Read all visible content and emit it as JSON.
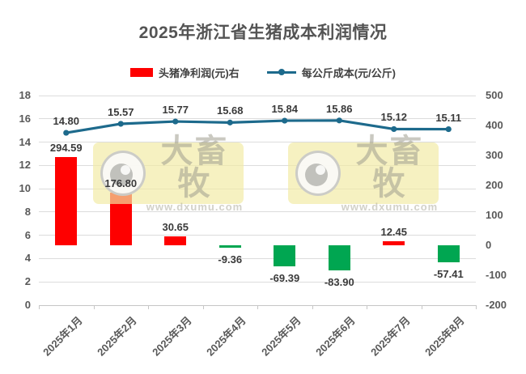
{
  "title": "2025年浙江省生猪成本利润情况",
  "watermark": {
    "brand": "大畜牧",
    "site": "www.dxumu.com"
  },
  "chart_data": {
    "type": "combo",
    "title": "2025年浙江省生猪成本利润情况",
    "categories": [
      "2025年1月",
      "2025年2月",
      "2025年3月",
      "2025年4月",
      "2025年5月",
      "2025年6月",
      "2025年7月",
      "2025年8月"
    ],
    "grid": true,
    "legend_position": "top",
    "left_axis": {
      "min": 0,
      "max": 18,
      "ticks": [
        "18",
        "16",
        "14",
        "12",
        "10",
        "8",
        "6",
        "4",
        "2",
        "0"
      ]
    },
    "right_axis": {
      "min": -200,
      "max": 500,
      "ticks": [
        "500",
        "400",
        "300",
        "200",
        "100",
        "0",
        "-100",
        "-200"
      ]
    },
    "series": [
      {
        "name": "头猪净利润(元)右",
        "type": "bar",
        "axis": "right",
        "values": [
          294.59,
          176.8,
          30.65,
          -9.36,
          -69.39,
          -83.9,
          12.45,
          -57.41
        ],
        "labels": [
          "294.59",
          "176.80",
          "30.65",
          "-9.36",
          "-69.39",
          "-83.90",
          "12.45",
          "-57.41"
        ],
        "positive_color": "#fe0000",
        "negative_color": "#00a651"
      },
      {
        "name": "每公斤成本(元/公斤)",
        "type": "line",
        "axis": "left",
        "values": [
          14.8,
          15.57,
          15.77,
          15.68,
          15.84,
          15.86,
          15.12,
          15.11
        ],
        "labels": [
          "14.80",
          "15.57",
          "15.77",
          "15.68",
          "15.84",
          "15.86",
          "15.12",
          "15.11"
        ],
        "color": "#1d6a8c"
      }
    ]
  }
}
